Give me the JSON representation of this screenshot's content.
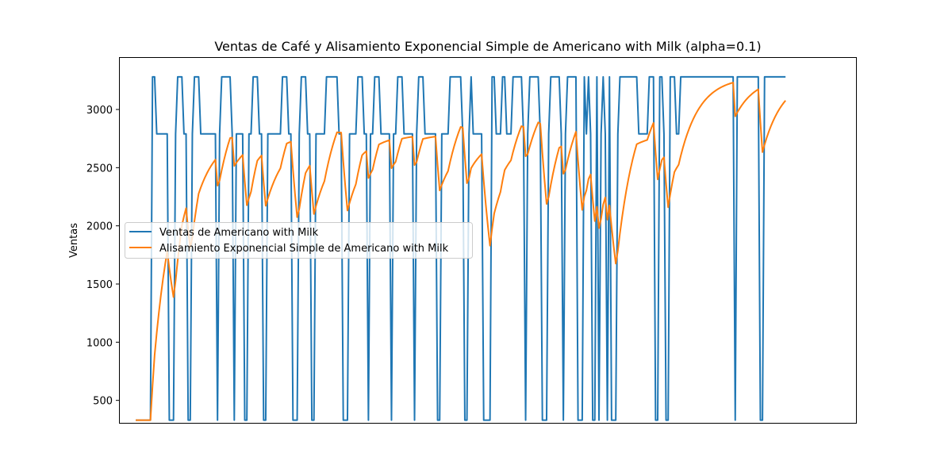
{
  "chart_data": {
    "type": "line",
    "title": "Ventas de Café y Alisamiento Exponencial Simple de Americano with Milk (alpha=0.1)",
    "xlabel": "",
    "ylabel": "Ventas",
    "xlim": [
      -8,
      344
    ],
    "ylim": [
      300,
      3450
    ],
    "yticks": [
      500,
      1000,
      1500,
      2000,
      2500,
      3000
    ],
    "grid": false,
    "legend_position": "center-left",
    "series": [
      {
        "name": "Ventas de Americano with Milk",
        "color": "#1f77b4",
        "values": [
          330,
          330,
          330,
          330,
          330,
          330,
          330,
          330,
          3280,
          3280,
          2790,
          2790,
          2790,
          2790,
          2790,
          2790,
          330,
          330,
          330,
          2790,
          3280,
          3280,
          3280,
          2790,
          2790,
          330,
          330,
          2790,
          3280,
          3280,
          3280,
          2790,
          2790,
          2790,
          2790,
          2790,
          2790,
          2790,
          2790,
          330,
          2790,
          3280,
          3280,
          3280,
          3280,
          3280,
          2790,
          330,
          2790,
          2790,
          2790,
          2790,
          330,
          330,
          2790,
          2790,
          3280,
          3280,
          3280,
          2790,
          2790,
          330,
          330,
          2790,
          2790,
          2790,
          2790,
          2790,
          2790,
          2790,
          3280,
          3280,
          3280,
          2790,
          2790,
          330,
          330,
          330,
          2790,
          3280,
          3280,
          3280,
          2790,
          2790,
          330,
          330,
          2790,
          2790,
          2790,
          2790,
          2790,
          3280,
          3280,
          3280,
          3280,
          3280,
          3280,
          2790,
          2790,
          330,
          330,
          330,
          2790,
          2790,
          2790,
          2790,
          3280,
          3280,
          3280,
          2790,
          2790,
          330,
          2790,
          2790,
          3280,
          3280,
          3280,
          2790,
          2790,
          2790,
          2790,
          2790,
          330,
          2790,
          2790,
          3280,
          3280,
          3280,
          2790,
          2790,
          2790,
          2790,
          2790,
          330,
          2790,
          3280,
          3280,
          3280,
          2790,
          2790,
          2790,
          2790,
          2790,
          2790,
          330,
          330,
          2790,
          2790,
          2790,
          2790,
          3280,
          3280,
          3280,
          3280,
          3280,
          3280,
          2790,
          330,
          330,
          2790,
          3280,
          2790,
          2790,
          2790,
          2790,
          2790,
          330,
          330,
          330,
          330,
          3280,
          3280,
          2790,
          2790,
          2790,
          3280,
          3280,
          2790,
          2790,
          2790,
          3280,
          3280,
          3280,
          3280,
          3280,
          2790,
          330,
          2790,
          3280,
          3280,
          3280,
          3280,
          3280,
          2790,
          330,
          330,
          330,
          2790,
          3280,
          3280,
          3280,
          3280,
          3280,
          2790,
          330,
          2790,
          3280,
          3280,
          3280,
          3280,
          3280,
          330,
          330,
          330,
          3280,
          2790,
          3280,
          2790,
          330,
          330,
          3280,
          330,
          2790,
          3280,
          2790,
          330,
          3280,
          330,
          330,
          330,
          2790,
          3280,
          3280,
          3280,
          3280,
          3280,
          3280,
          3280,
          3280,
          3280,
          2790,
          2790,
          2790,
          2790,
          2790,
          3280,
          3280,
          3280,
          330,
          330,
          3280,
          3280,
          2790,
          330,
          330,
          3280,
          3280,
          3280,
          2790,
          2790,
          3280,
          3280,
          3280,
          3280,
          3280,
          3280,
          3280,
          3280,
          3280,
          3280,
          3280,
          3280,
          3280,
          3280,
          3280,
          3280,
          3280,
          3280,
          3280,
          3280,
          3280,
          3280,
          3280,
          3280,
          3280,
          3280,
          330,
          3280,
          3280,
          3280,
          3280,
          3280,
          3280,
          3280,
          3280,
          3280,
          3280,
          3280,
          330,
          330,
          3280,
          3280,
          3280,
          3280,
          3280,
          3280,
          3280,
          3280,
          3280,
          3280,
          3280
        ]
      },
      {
        "name": "Alisamiento Exponencial Simple de Americano with Milk",
        "color": "#ff7f0e",
        "alpha": 0.1
      }
    ]
  }
}
